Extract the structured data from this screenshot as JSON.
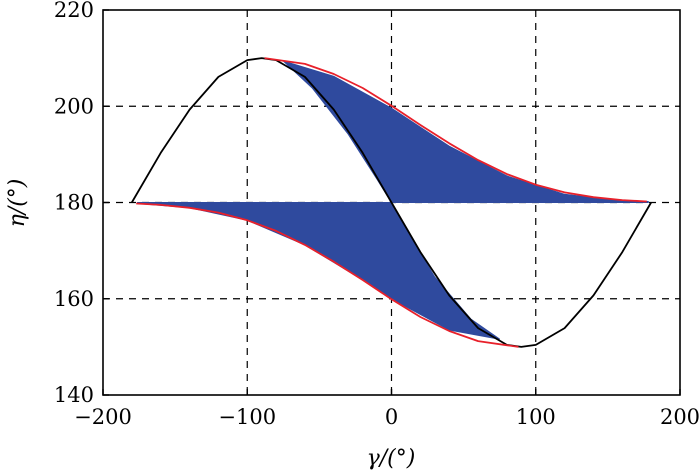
{
  "chart_data": {
    "type": "line",
    "title": "",
    "xlabel": "γ/(°)",
    "ylabel": "η/(°)",
    "xlim": [
      -200,
      200
    ],
    "ylim": [
      140,
      220
    ],
    "x_ticks": [
      -200,
      -100,
      0,
      100,
      200
    ],
    "y_ticks": [
      140,
      160,
      180,
      200,
      220
    ],
    "x_tick_labels": [
      "−200",
      "−100",
      "0",
      "100",
      "200"
    ],
    "y_tick_labels": [
      "140",
      "160",
      "180",
      "200",
      "220"
    ],
    "grid": true,
    "grid_style": "dashed",
    "colors": {
      "fill": "#2f4a9e",
      "envelope": "#e8202a",
      "curve": "#000000"
    },
    "series": [
      {
        "type": "line",
        "color": "#000000",
        "x": [
          -180,
          -160,
          -140,
          -120,
          -100,
          -90,
          -80,
          -60,
          -40,
          -20,
          0,
          20,
          40,
          60,
          80,
          90,
          100,
          120,
          140,
          160,
          180
        ],
        "y": [
          180,
          190.3,
          199.3,
          206.1,
          209.6,
          210,
          209.6,
          206.1,
          199.3,
          190.3,
          180,
          169.7,
          160.7,
          153.9,
          150.4,
          150,
          150.4,
          153.9,
          160.7,
          169.7,
          180
        ]
      },
      {
        "type": "line",
        "color": "#e8202a",
        "x": [
          -88,
          -60,
          -40,
          -20,
          0,
          20,
          40,
          60,
          80,
          100,
          120,
          140,
          160,
          177
        ],
        "y": [
          210,
          208.8,
          206.7,
          203.8,
          200.1,
          196.1,
          192.3,
          188.8,
          185.9,
          183.7,
          182.1,
          181.1,
          180.5,
          180.2
        ]
      },
      {
        "type": "line",
        "color": "#e8202a",
        "x": [
          -177,
          -160,
          -140,
          -120,
          -100,
          -80,
          -60,
          -40,
          -20,
          0,
          20,
          40,
          60,
          88
        ],
        "y": [
          179.8,
          179.5,
          178.9,
          177.9,
          176.3,
          174.1,
          171.2,
          167.7,
          163.9,
          159.9,
          156.2,
          153.3,
          151.2,
          150
        ]
      },
      {
        "type": "area",
        "color": "#2f4a9e",
        "x": [
          -75,
          -40,
          0,
          40,
          80,
          120,
          160,
          178,
          178,
          0,
          -10,
          -30,
          -55,
          -75
        ],
        "y": [
          209.4,
          206.2,
          199.6,
          191.7,
          185.5,
          181.7,
          180.3,
          180.2,
          180,
          180,
          184.8,
          194.2,
          203.8,
          209.4
        ]
      },
      {
        "type": "area",
        "color": "#2f4a9e",
        "x": [
          -176,
          -140,
          -100,
          -60,
          -20,
          0,
          40,
          75,
          75,
          55,
          30,
          10,
          0,
          -176
        ],
        "y": [
          179.8,
          178.9,
          176.3,
          171.2,
          163.9,
          160,
          153.5,
          151.6,
          151.6,
          155.8,
          164.5,
          174.5,
          180,
          180
        ]
      }
    ]
  }
}
